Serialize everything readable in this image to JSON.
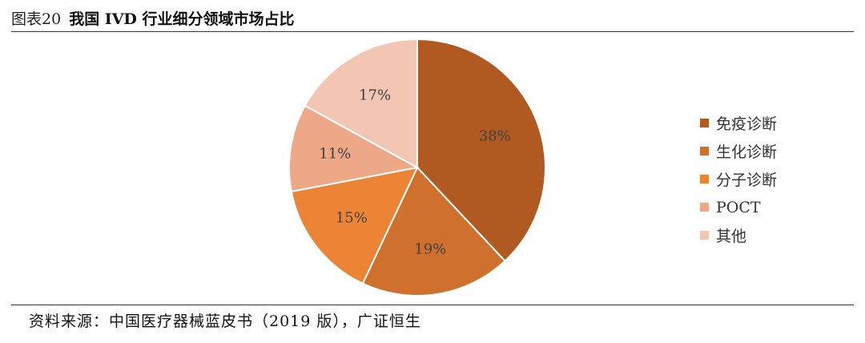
{
  "header": {
    "figure_label": "图表20",
    "title": "我国 IVD 行业细分领域市场占比"
  },
  "footer": {
    "source": "资料来源：中国医疗器械蓝皮书（2019 版），广证恒生"
  },
  "chart_data": {
    "type": "pie",
    "title": "我国 IVD 行业细分领域市场占比",
    "slices": [
      {
        "label": "免疫诊断",
        "value": 38,
        "display": "38%",
        "color": "#B05A21"
      },
      {
        "label": "生化诊断",
        "value": 19,
        "display": "19%",
        "color": "#D0702D"
      },
      {
        "label": "分子诊断",
        "value": 15,
        "display": "15%",
        "color": "#EB8535"
      },
      {
        "label": "POCT",
        "value": 11,
        "display": "11%",
        "color": "#EDA887"
      },
      {
        "label": "其他",
        "value": 17,
        "display": "17%",
        "color": "#F3C6B3"
      }
    ],
    "start": "12 o'clock",
    "direction": "clockwise",
    "legend_position": "right"
  }
}
